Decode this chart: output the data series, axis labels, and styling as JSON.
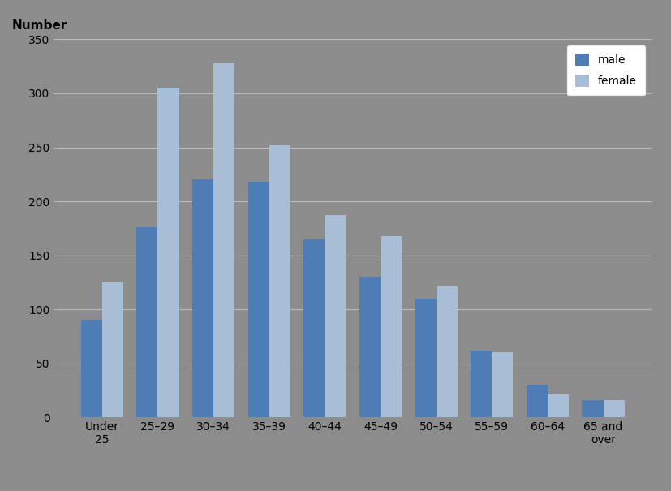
{
  "categories": [
    "Under\n25",
    "25–29",
    "30–34",
    "35–39",
    "40–44",
    "45–49",
    "50–54",
    "55–59",
    "60–64",
    "65 and\nover"
  ],
  "male_values": [
    90,
    176,
    220,
    218,
    165,
    130,
    110,
    62,
    30,
    16
  ],
  "female_values": [
    125,
    305,
    328,
    252,
    187,
    168,
    121,
    60,
    21,
    16
  ],
  "male_color": "#4E7DB5",
  "female_color": "#A8BDD6",
  "background_color": "#8C8C8C",
  "ylabel": "Number",
  "ylim": [
    0,
    350
  ],
  "yticks": [
    0,
    50,
    100,
    150,
    200,
    250,
    300,
    350
  ],
  "legend_labels": [
    "male",
    "female"
  ],
  "bar_width": 0.38,
  "tick_fontsize": 10,
  "label_fontsize": 11
}
